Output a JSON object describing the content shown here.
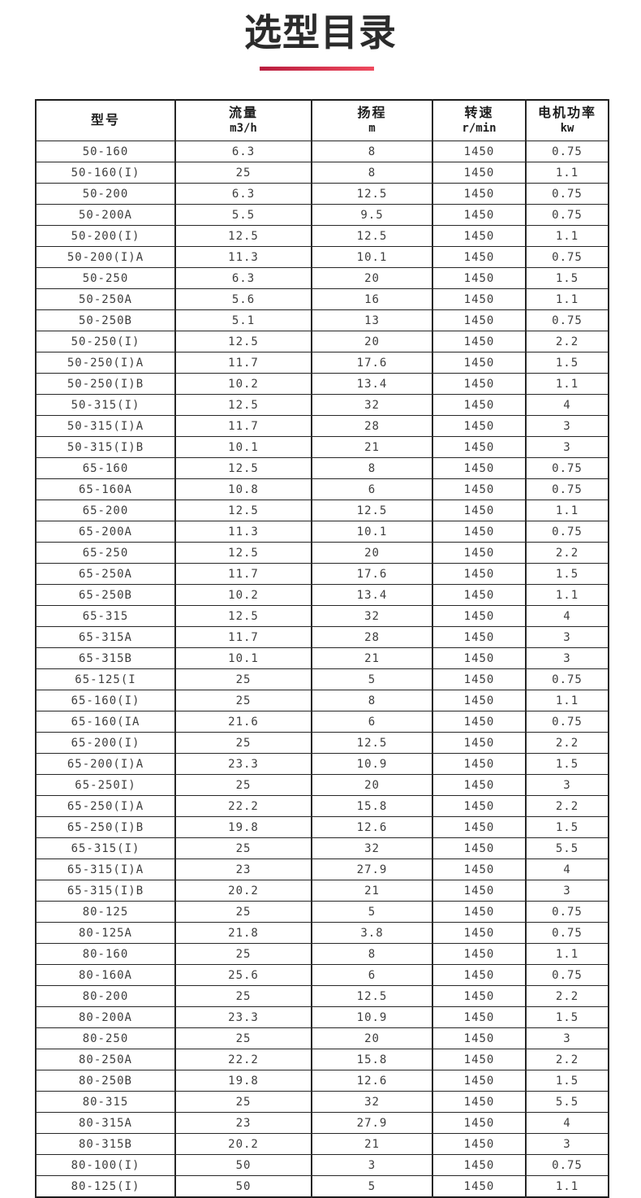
{
  "page": {
    "title": "选型目录",
    "accent_color_start": "#b81d3e",
    "accent_color_end": "#ef4a5e"
  },
  "table": {
    "headers": [
      {
        "line1": "型号",
        "line2": ""
      },
      {
        "line1": "流量",
        "line2": "m3/h"
      },
      {
        "line1": "扬程",
        "line2": "m"
      },
      {
        "line1": "转速",
        "line2": "r/min"
      },
      {
        "line1": "电机功率",
        "line2": "kw"
      }
    ],
    "rows": [
      [
        "50-160",
        "6.3",
        "8",
        "1450",
        "0.75"
      ],
      [
        "50-160(I)",
        "25",
        "8",
        "1450",
        "1.1"
      ],
      [
        "50-200",
        "6.3",
        "12.5",
        "1450",
        "0.75"
      ],
      [
        "50-200A",
        "5.5",
        "9.5",
        "1450",
        "0.75"
      ],
      [
        "50-200(I)",
        "12.5",
        "12.5",
        "1450",
        "1.1"
      ],
      [
        "50-200(I)A",
        "11.3",
        "10.1",
        "1450",
        "0.75"
      ],
      [
        "50-250",
        "6.3",
        "20",
        "1450",
        "1.5"
      ],
      [
        "50-250A",
        "5.6",
        "16",
        "1450",
        "1.1"
      ],
      [
        "50-250B",
        "5.1",
        "13",
        "1450",
        "0.75"
      ],
      [
        "50-250(I)",
        "12.5",
        "20",
        "1450",
        "2.2"
      ],
      [
        "50-250(I)A",
        "11.7",
        "17.6",
        "1450",
        "1.5"
      ],
      [
        "50-250(I)B",
        "10.2",
        "13.4",
        "1450",
        "1.1"
      ],
      [
        "50-315(I)",
        "12.5",
        "32",
        "1450",
        "4"
      ],
      [
        "50-315(I)A",
        "11.7",
        "28",
        "1450",
        "3"
      ],
      [
        "50-315(I)B",
        "10.1",
        "21",
        "1450",
        "3"
      ],
      [
        "65-160",
        "12.5",
        "8",
        "1450",
        "0.75"
      ],
      [
        "65-160A",
        "10.8",
        "6",
        "1450",
        "0.75"
      ],
      [
        "65-200",
        "12.5",
        "12.5",
        "1450",
        "1.1"
      ],
      [
        "65-200A",
        "11.3",
        "10.1",
        "1450",
        "0.75"
      ],
      [
        "65-250",
        "12.5",
        "20",
        "1450",
        "2.2"
      ],
      [
        "65-250A",
        "11.7",
        "17.6",
        "1450",
        "1.5"
      ],
      [
        "65-250B",
        "10.2",
        "13.4",
        "1450",
        "1.1"
      ],
      [
        "65-315",
        "12.5",
        "32",
        "1450",
        "4"
      ],
      [
        "65-315A",
        "11.7",
        "28",
        "1450",
        "3"
      ],
      [
        "65-315B",
        "10.1",
        "21",
        "1450",
        "3"
      ],
      [
        "65-125(I",
        "25",
        "5",
        "1450",
        "0.75"
      ],
      [
        "65-160(I)",
        "25",
        "8",
        "1450",
        "1.1"
      ],
      [
        "65-160(IA",
        "21.6",
        "6",
        "1450",
        "0.75"
      ],
      [
        "65-200(I)",
        "25",
        "12.5",
        "1450",
        "2.2"
      ],
      [
        "65-200(I)A",
        "23.3",
        "10.9",
        "1450",
        "1.5"
      ],
      [
        "65-250I)",
        "25",
        "20",
        "1450",
        "3"
      ],
      [
        "65-250(I)A",
        "22.2",
        "15.8",
        "1450",
        "2.2"
      ],
      [
        "65-250(I)B",
        "19.8",
        "12.6",
        "1450",
        "1.5"
      ],
      [
        "65-315(I)",
        "25",
        "32",
        "1450",
        "5.5"
      ],
      [
        "65-315(I)A",
        "23",
        "27.9",
        "1450",
        "4"
      ],
      [
        "65-315(I)B",
        "20.2",
        "21",
        "1450",
        "3"
      ],
      [
        "80-125",
        "25",
        "5",
        "1450",
        "0.75"
      ],
      [
        "80-125A",
        "21.8",
        "3.8",
        "1450",
        "0.75"
      ],
      [
        "80-160",
        "25",
        "8",
        "1450",
        "1.1"
      ],
      [
        "80-160A",
        "25.6",
        "6",
        "1450",
        "0.75"
      ],
      [
        "80-200",
        "25",
        "12.5",
        "1450",
        "2.2"
      ],
      [
        "80-200A",
        "23.3",
        "10.9",
        "1450",
        "1.5"
      ],
      [
        "80-250",
        "25",
        "20",
        "1450",
        "3"
      ],
      [
        "80-250A",
        "22.2",
        "15.8",
        "1450",
        "2.2"
      ],
      [
        "80-250B",
        "19.8",
        "12.6",
        "1450",
        "1.5"
      ],
      [
        "80-315",
        "25",
        "32",
        "1450",
        "5.5"
      ],
      [
        "80-315A",
        "23",
        "27.9",
        "1450",
        "4"
      ],
      [
        "80-315B",
        "20.2",
        "21",
        "1450",
        "3"
      ],
      [
        "80-100(I)",
        "50",
        "3",
        "1450",
        "0.75"
      ],
      [
        "80-125(I)",
        "50",
        "5",
        "1450",
        "1.1"
      ]
    ]
  }
}
